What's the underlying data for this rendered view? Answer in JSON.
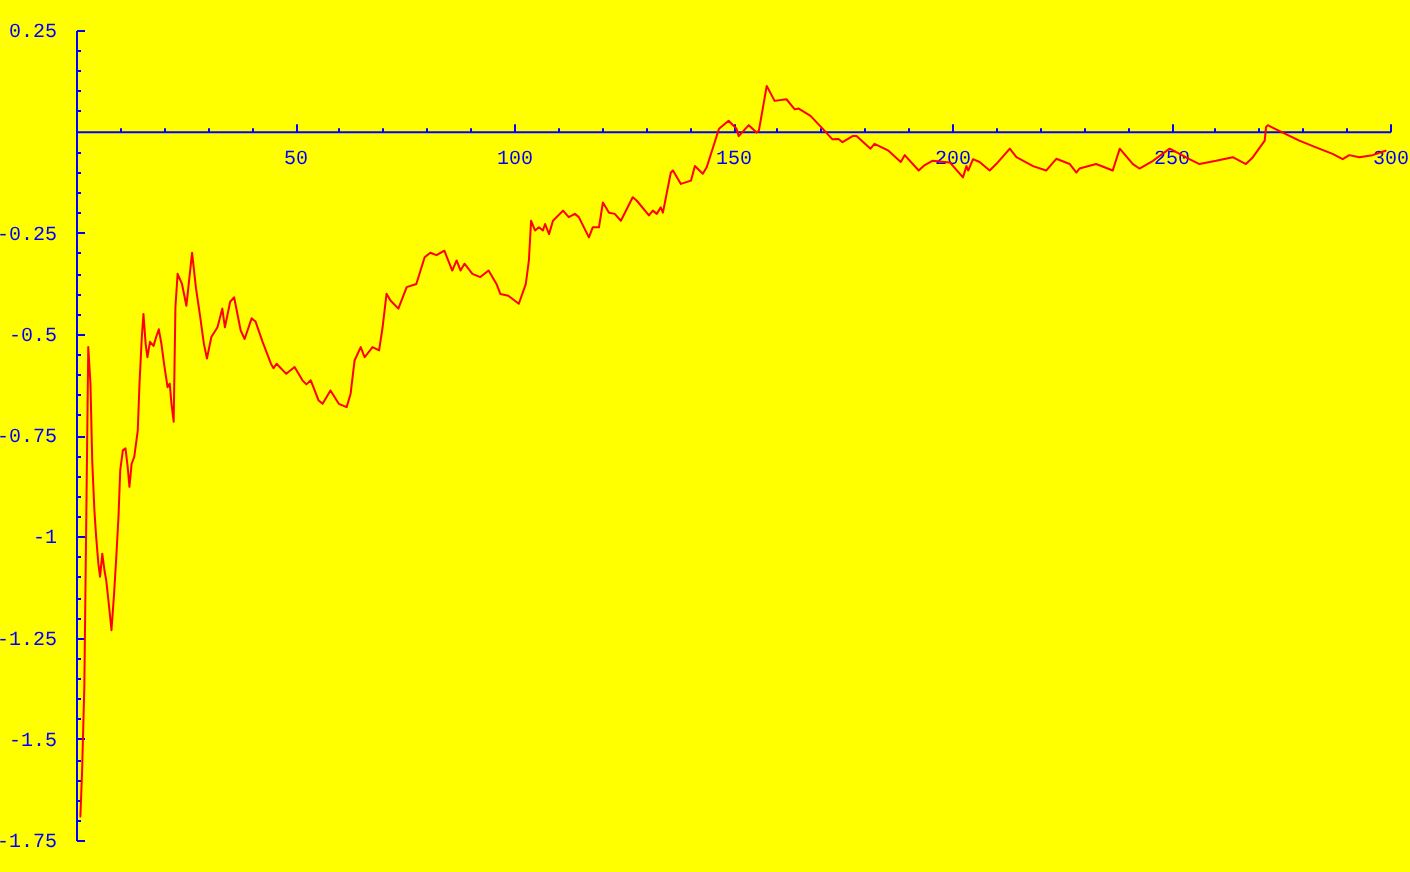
{
  "chart_data": {
    "type": "line",
    "x": [
      1.0,
      1.4,
      1.9,
      2.8,
      3.3,
      3.7,
      4.2,
      4.6,
      5.1,
      5.5,
      6.0,
      6.5,
      6.9,
      7.4,
      8.1,
      8.7,
      9.2,
      9.7,
      10.1,
      10.7,
      11.3,
      11.8,
      12.2,
      12.7,
      13.3,
      14.1,
      14.5,
      15.0,
      15.4,
      15.9,
      16.3,
      16.9,
      17.7,
      18.3,
      18.9,
      19.5,
      20.1,
      20.9,
      21.4,
      21.8,
      22.3,
      22.7,
      23.2,
      24.2,
      25.2,
      26.5,
      27.4,
      28.3,
      29.2,
      29.9,
      30.9,
      32.3,
      33.4,
      34.0,
      35.2,
      36.1,
      37.6,
      38.5,
      40.1,
      41.0,
      42.6,
      44.5,
      45.1,
      45.8,
      48.0,
      49.9,
      51.7,
      52.6,
      53.6,
      55.4,
      56.3,
      58.1,
      60.0,
      61.8,
      62.7,
      63.6,
      65.0,
      65.9,
      67.7,
      69.2,
      70.0,
      70.9,
      71.8,
      73.6,
      75.5,
      77.7,
      79.6,
      80.9,
      82.3,
      84.1,
      85.9,
      86.9,
      87.8,
      88.7,
      90.5,
      92.3,
      94.2,
      96.0,
      96.9,
      98.7,
      101.1,
      102.7,
      103.4,
      103.9,
      104.8,
      105.7,
      106.6,
      107.1,
      108.0,
      108.9,
      111.2,
      112.5,
      113.9,
      114.8,
      117.1,
      118.0,
      119.4,
      120.3,
      121.7,
      123.0,
      124.4,
      127.1,
      128.0,
      130.8,
      131.7,
      132.6,
      133.5,
      134.0,
      135.8,
      136.3,
      138.1,
      140.4,
      141.3,
      143.1,
      144.0,
      146.8,
      149.0,
      150.8,
      151.3,
      153.6,
      155.4,
      155.9,
      157.7,
      159.5,
      162.2,
      164.1,
      165.0,
      167.7,
      170.5,
      172.7,
      174.1,
      175.0,
      177.3,
      178.2,
      181.4,
      182.3,
      185.5,
      188.3,
      189.2,
      192.4,
      193.7,
      195.5,
      199.5,
      202.5,
      203.3,
      203.7,
      204.8,
      206.3,
      208.6,
      210.1,
      213.2,
      214.7,
      218.5,
      221.5,
      223.8,
      226.9,
      228.4,
      229.1,
      232.9,
      236.7,
      238.3,
      241.3,
      242.8,
      245.9,
      249.7,
      254.2,
      256.5,
      260.3,
      264.1,
      267.1,
      268.7,
      271.4,
      271.7,
      272.1,
      274.7,
      279.3,
      283.1,
      286.9,
      289.2,
      290.7,
      293.0,
      296.0,
      299.0
    ],
    "series": [
      {
        "color": "#ff0000",
        "values": [
          -1.692,
          -1.577,
          -1.372,
          -0.533,
          -0.623,
          -0.813,
          -0.936,
          -1.001,
          -1.067,
          -1.1,
          -1.043,
          -1.084,
          -1.109,
          -1.158,
          -1.232,
          -1.141,
          -1.051,
          -0.952,
          -0.837,
          -0.788,
          -0.783,
          -0.829,
          -0.878,
          -0.821,
          -0.804,
          -0.739,
          -0.623,
          -0.513,
          -0.451,
          -0.525,
          -0.558,
          -0.52,
          -0.53,
          -0.508,
          -0.489,
          -0.525,
          -0.574,
          -0.632,
          -0.623,
          -0.673,
          -0.717,
          -0.434,
          -0.352,
          -0.377,
          -0.431,
          -0.3,
          -0.388,
          -0.454,
          -0.525,
          -0.561,
          -0.508,
          -0.484,
          -0.438,
          -0.484,
          -0.421,
          -0.41,
          -0.492,
          -0.513,
          -0.462,
          -0.47,
          -0.52,
          -0.574,
          -0.585,
          -0.574,
          -0.599,
          -0.582,
          -0.615,
          -0.625,
          -0.615,
          -0.665,
          -0.673,
          -0.64,
          -0.673,
          -0.681,
          -0.648,
          -0.566,
          -0.533,
          -0.558,
          -0.533,
          -0.541,
          -0.484,
          -0.401,
          -0.418,
          -0.438,
          -0.385,
          -0.377,
          -0.311,
          -0.3,
          -0.306,
          -0.295,
          -0.344,
          -0.319,
          -0.344,
          -0.327,
          -0.352,
          -0.36,
          -0.344,
          -0.377,
          -0.402,
          -0.406,
          -0.426,
          -0.377,
          -0.319,
          -0.221,
          -0.245,
          -0.237,
          -0.245,
          -0.229,
          -0.254,
          -0.221,
          -0.196,
          -0.212,
          -0.204,
          -0.212,
          -0.262,
          -0.237,
          -0.237,
          -0.176,
          -0.201,
          -0.204,
          -0.221,
          -0.163,
          -0.171,
          -0.208,
          -0.196,
          -0.204,
          -0.188,
          -0.201,
          -0.102,
          -0.097,
          -0.13,
          -0.122,
          -0.086,
          -0.105,
          -0.089,
          0.006,
          0.026,
          0.006,
          -0.012,
          0.015,
          -0.003,
          0.001,
          0.112,
          0.075,
          0.079,
          0.054,
          0.056,
          0.038,
          0.006,
          -0.02,
          -0.019,
          -0.027,
          -0.012,
          -0.012,
          -0.043,
          -0.031,
          -0.048,
          -0.076,
          -0.059,
          -0.097,
          -0.084,
          -0.073,
          -0.077,
          -0.114,
          -0.086,
          -0.097,
          -0.069,
          -0.076,
          -0.097,
          -0.081,
          -0.043,
          -0.064,
          -0.086,
          -0.097,
          -0.068,
          -0.081,
          -0.102,
          -0.092,
          -0.081,
          -0.097,
          -0.043,
          -0.081,
          -0.092,
          -0.073,
          -0.043,
          -0.069,
          -0.081,
          -0.073,
          -0.064,
          -0.081,
          -0.064,
          -0.023,
          0.01,
          0.015,
          0.001,
          -0.023,
          -0.04,
          -0.056,
          -0.069,
          -0.059,
          -0.064,
          -0.059,
          -0.048
        ]
      }
    ],
    "xlim": [
      0,
      300
    ],
    "ylim": [
      -1.75,
      0.25
    ],
    "xticks": [
      {
        "value": 10,
        "label": null
      },
      {
        "value": 20,
        "label": null
      },
      {
        "value": 30,
        "label": null
      },
      {
        "value": 40,
        "label": null
      },
      50,
      {
        "value": 60,
        "label": null
      },
      {
        "value": 70,
        "label": null
      },
      {
        "value": 80,
        "label": null
      },
      {
        "value": 90,
        "label": null
      },
      100,
      {
        "value": 110,
        "label": null
      },
      {
        "value": 120,
        "label": null
      },
      {
        "value": 130,
        "label": null
      },
      {
        "value": 140,
        "label": null
      },
      150,
      {
        "value": 160,
        "label": null
      },
      {
        "value": 170,
        "label": null
      },
      {
        "value": 180,
        "label": null
      },
      {
        "value": 190,
        "label": null
      },
      200,
      {
        "value": 210,
        "label": null
      },
      {
        "value": 220,
        "label": null
      },
      {
        "value": 230,
        "label": null
      },
      {
        "value": 240,
        "label": null
      },
      250,
      {
        "value": 260,
        "label": null
      },
      {
        "value": 270,
        "label": null
      },
      {
        "value": 280,
        "label": null
      },
      {
        "value": 290,
        "label": null
      },
      300
    ],
    "yticks": [
      0.25,
      {
        "value": 0.2,
        "label": null
      },
      {
        "value": 0.15,
        "label": null
      },
      {
        "value": 0.1,
        "label": null
      },
      {
        "value": 0.05,
        "label": null
      },
      {
        "value": -0.05,
        "label": null
      },
      {
        "value": -0.1,
        "label": null
      },
      {
        "value": -0.15,
        "label": null
      },
      {
        "value": -0.2,
        "label": null
      },
      -0.25,
      {
        "value": -0.3,
        "label": null
      },
      {
        "value": -0.35,
        "label": null
      },
      {
        "value": -0.4,
        "label": null
      },
      {
        "value": -0.45,
        "label": null
      },
      -0.5,
      {
        "value": -0.55,
        "label": null
      },
      {
        "value": -0.6,
        "label": null
      },
      {
        "value": -0.65,
        "label": null
      },
      {
        "value": -0.7,
        "label": null
      },
      -0.75,
      {
        "value": -0.8,
        "label": null
      },
      {
        "value": -0.85,
        "label": null
      },
      {
        "value": -0.9,
        "label": null
      },
      {
        "value": -0.95,
        "label": null
      },
      -1,
      {
        "value": -1.05,
        "label": null
      },
      {
        "value": -1.1,
        "label": null
      },
      {
        "value": -1.15,
        "label": null
      },
      {
        "value": -1.2,
        "label": null
      },
      -1.25,
      {
        "value": -1.3,
        "label": null
      },
      {
        "value": -1.35,
        "label": null
      },
      {
        "value": -1.4,
        "label": null
      },
      {
        "value": -1.45,
        "label": null
      },
      -1.5,
      {
        "value": -1.55,
        "label": null
      },
      {
        "value": -1.6,
        "label": null
      },
      {
        "value": -1.65,
        "label": null
      },
      {
        "value": -1.7,
        "label": null
      },
      -1.75
    ],
    "grid": false,
    "line_style": "solid"
  }
}
